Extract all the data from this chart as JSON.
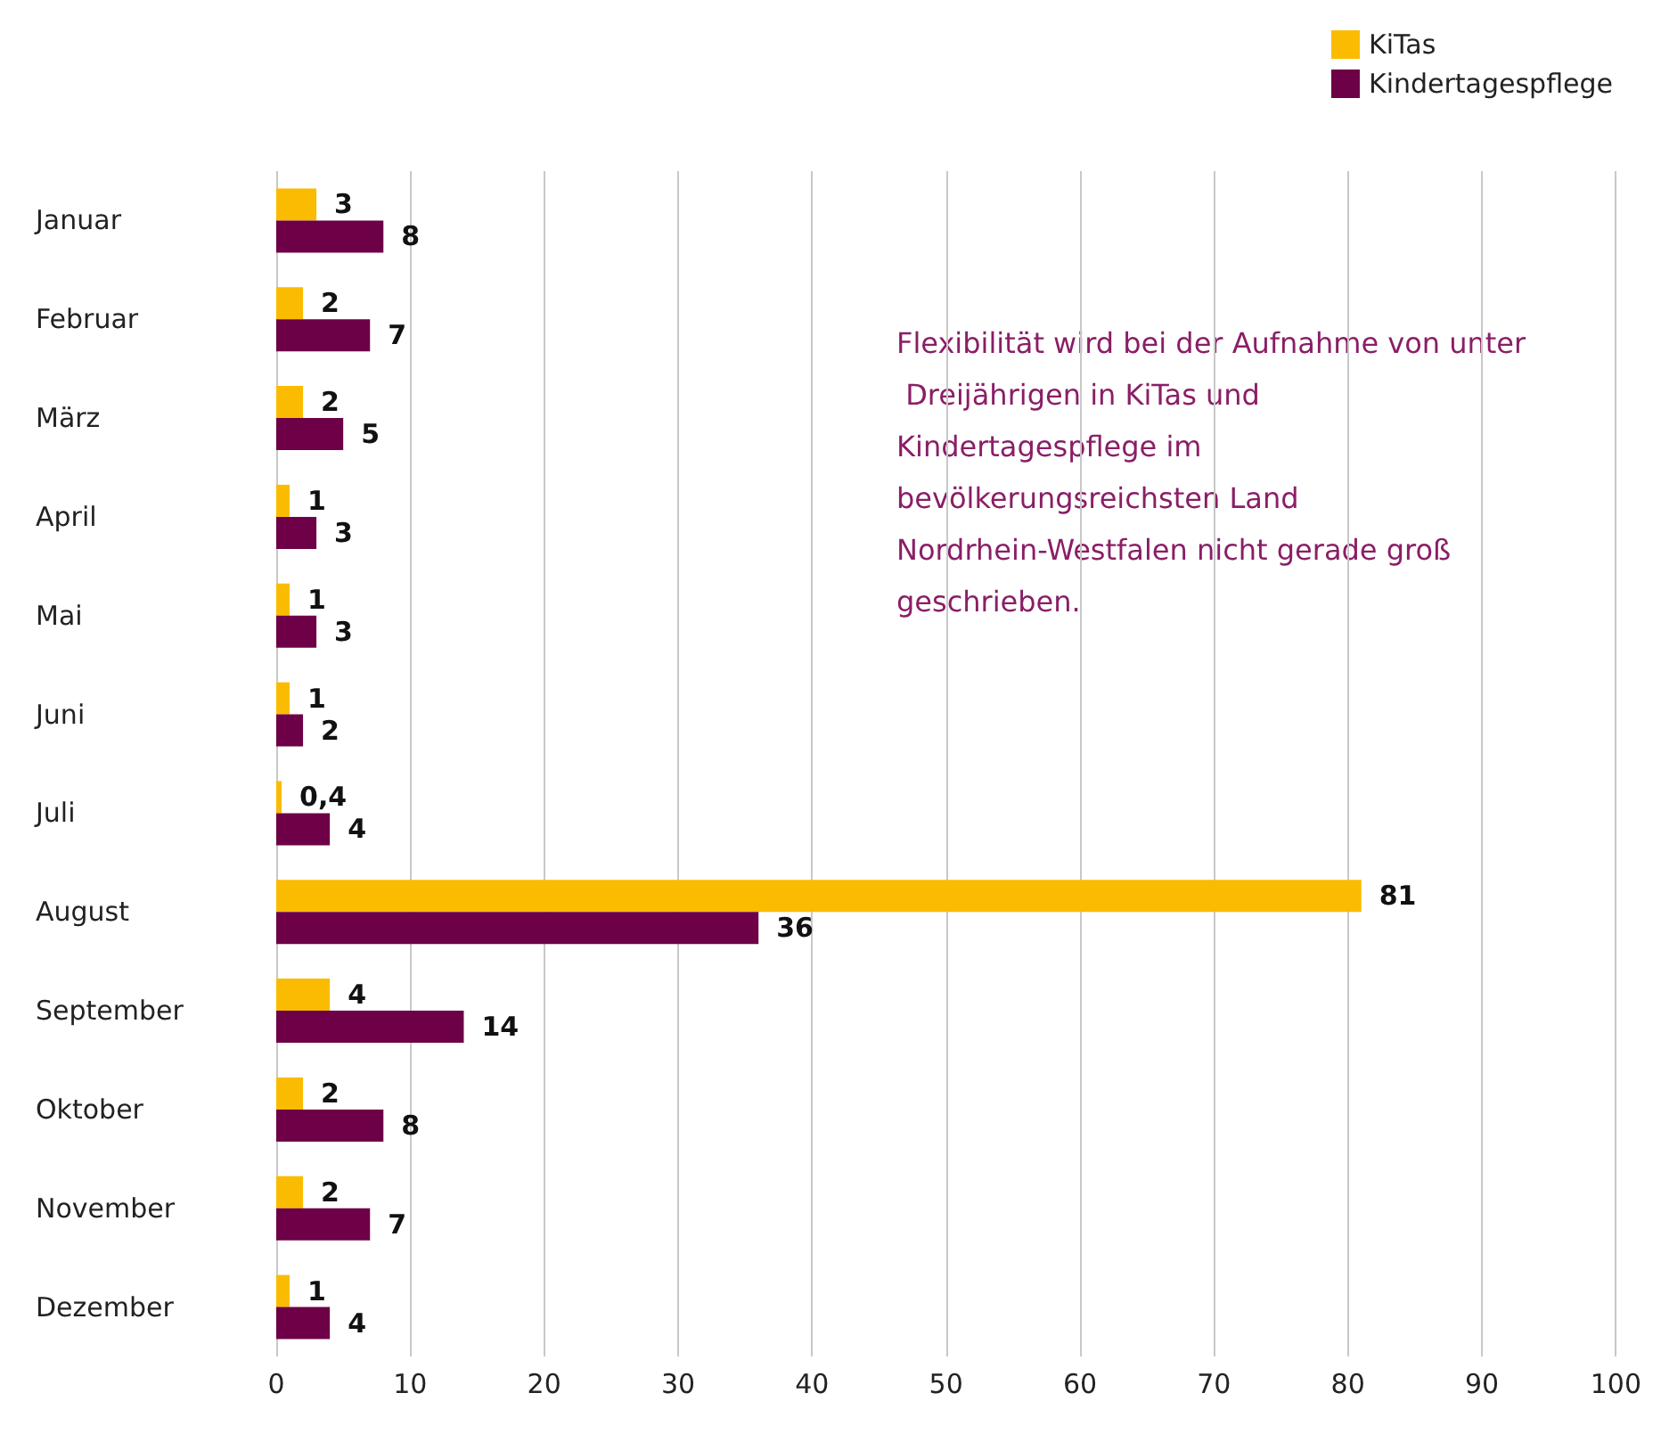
{
  "chart_data": {
    "type": "bar",
    "orientation": "horizontal",
    "categories": [
      "Januar",
      "Februar",
      "März",
      "April",
      "Mai",
      "Juni",
      "Juli",
      "August",
      "September",
      "Oktober",
      "November",
      "Dezember"
    ],
    "series": [
      {
        "name": "KiTas",
        "color": "#fbbb00",
        "values": [
          3,
          2,
          2,
          1,
          1,
          1,
          0.4,
          81,
          4,
          2,
          2,
          1
        ],
        "value_labels": [
          "3",
          "2",
          "2",
          "1",
          "1",
          "1",
          "0,4",
          "81",
          "4",
          "2",
          "2",
          "1"
        ]
      },
      {
        "name": "Kindertagespflege",
        "color": "#6d0046",
        "values": [
          8,
          7,
          5,
          3,
          3,
          2,
          4,
          36,
          14,
          8,
          7,
          4
        ],
        "value_labels": [
          "8",
          "7",
          "5",
          "3",
          "3",
          "2",
          "4",
          "36",
          "14",
          "8",
          "7",
          "4"
        ]
      }
    ],
    "xlim": [
      0,
      100
    ],
    "xticks": [
      0,
      10,
      20,
      30,
      40,
      50,
      60,
      70,
      80,
      90,
      100
    ],
    "grid": "x",
    "legend": "top right",
    "annotations": [
      "Flexibilität wird bei der Aufnahme von unter Dreijährigen in KiTas und Kindertagespflege im bevölkerungsreichsten Land Nordrhein-Westfalen nicht gerade groß geschrieben."
    ]
  }
}
